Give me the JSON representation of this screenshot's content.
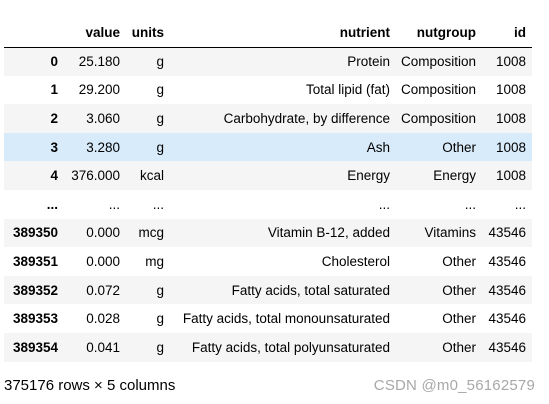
{
  "table": {
    "columns": [
      "",
      "value",
      "units",
      "nutrient",
      "nutgroup",
      "id"
    ],
    "rows": [
      {
        "index": "0",
        "value": "25.180",
        "units": "g",
        "nutrient": "Protein",
        "nutgroup": "Composition",
        "id": "1008"
      },
      {
        "index": "1",
        "value": "29.200",
        "units": "g",
        "nutrient": "Total lipid (fat)",
        "nutgroup": "Composition",
        "id": "1008"
      },
      {
        "index": "2",
        "value": "3.060",
        "units": "g",
        "nutrient": "Carbohydrate, by difference",
        "nutgroup": "Composition",
        "id": "1008"
      },
      {
        "index": "3",
        "value": "3.280",
        "units": "g",
        "nutrient": "Ash",
        "nutgroup": "Other",
        "id": "1008"
      },
      {
        "index": "4",
        "value": "376.000",
        "units": "kcal",
        "nutrient": "Energy",
        "nutgroup": "Energy",
        "id": "1008"
      },
      {
        "index": "...",
        "value": "...",
        "units": "...",
        "nutrient": "...",
        "nutgroup": "...",
        "id": "..."
      },
      {
        "index": "389350",
        "value": "0.000",
        "units": "mcg",
        "nutrient": "Vitamin B-12, added",
        "nutgroup": "Vitamins",
        "id": "43546"
      },
      {
        "index": "389351",
        "value": "0.000",
        "units": "mg",
        "nutrient": "Cholesterol",
        "nutgroup": "Other",
        "id": "43546"
      },
      {
        "index": "389352",
        "value": "0.072",
        "units": "g",
        "nutrient": "Fatty acids, total saturated",
        "nutgroup": "Other",
        "id": "43546"
      },
      {
        "index": "389353",
        "value": "0.028",
        "units": "g",
        "nutrient": "Fatty acids, total monounsaturated",
        "nutgroup": "Other",
        "id": "43546"
      },
      {
        "index": "389354",
        "value": "0.041",
        "units": "g",
        "nutrient": "Fatty acids, total polyunsaturated",
        "nutgroup": "Other",
        "id": "43546"
      }
    ],
    "highlighted_row": 3,
    "colors": {
      "odd_row": "#f5f5f5",
      "hover_row": "#d8ebfa"
    }
  },
  "footer": {
    "shape_text": "375176 rows × 5 columns"
  },
  "watermark": {
    "text": "CSDN @m0_56162579"
  }
}
